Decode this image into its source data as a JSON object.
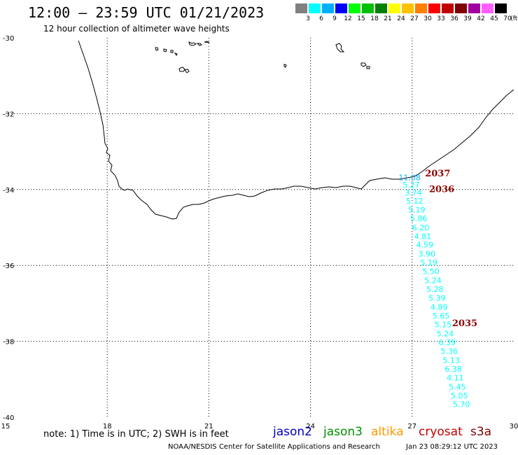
{
  "header": {
    "title": "12:00 – 23:59 UTC 01/21/2023",
    "subtitle": "12 hour collection of altimeter wave heights"
  },
  "legend": {
    "unit": "(ft)",
    "bins": [
      {
        "label": "3",
        "color": "#808080"
      },
      {
        "label": "6",
        "color": "#00ffff"
      },
      {
        "label": "9",
        "color": "#00b0ff"
      },
      {
        "label": "12",
        "color": "#0000ff"
      },
      {
        "label": "15",
        "color": "#00ff00"
      },
      {
        "label": "18",
        "color": "#00c000"
      },
      {
        "label": "21",
        "color": "#008000"
      },
      {
        "label": "24",
        "color": "#ffff00"
      },
      {
        "label": "27",
        "color": "#ffc000"
      },
      {
        "label": "30",
        "color": "#ff8000"
      },
      {
        "label": "33",
        "color": "#ff0000"
      },
      {
        "label": "36",
        "color": "#c00000"
      },
      {
        "label": "39",
        "color": "#800000"
      },
      {
        "label": "42",
        "color": "#a000a0"
      },
      {
        "label": "45",
        "color": "#ff60ff"
      },
      {
        "label": "70",
        "color": "#000000"
      }
    ]
  },
  "axes": {
    "lon_ticks": [
      "15",
      "18",
      "21",
      "24",
      "27",
      "30"
    ],
    "lat_ticks": [
      "-30",
      "-32",
      "-34",
      "-36",
      "-38",
      "-40"
    ]
  },
  "chart_data": {
    "type": "scatter",
    "x_range": [
      15,
      30
    ],
    "y_range": [
      -40,
      -30
    ],
    "grid": true,
    "units": "ft",
    "points": [
      {
        "lon": 26.6,
        "lat": -33.75,
        "value": "11.08",
        "color": "#00b0ff"
      },
      {
        "lon": 26.72,
        "lat": -33.95,
        "value": "5.27",
        "color": "#00ffff"
      },
      {
        "lon": 26.78,
        "lat": -34.15,
        "value": "3.74",
        "color": "#00ffff"
      },
      {
        "lon": 26.82,
        "lat": -34.37,
        "value": "5.12",
        "color": "#00ffff"
      },
      {
        "lon": 26.88,
        "lat": -34.6,
        "value": "5.19",
        "color": "#00ffff"
      },
      {
        "lon": 26.94,
        "lat": -34.83,
        "value": "5.86",
        "color": "#00ffff"
      },
      {
        "lon": 27.0,
        "lat": -35.07,
        "value": "6.20",
        "color": "#00ffff"
      },
      {
        "lon": 27.06,
        "lat": -35.3,
        "value": "4.81",
        "color": "#00ffff"
      },
      {
        "lon": 27.12,
        "lat": -35.53,
        "value": "4.59",
        "color": "#00ffff"
      },
      {
        "lon": 27.18,
        "lat": -35.77,
        "value": "3.90",
        "color": "#00ffff"
      },
      {
        "lon": 27.24,
        "lat": -36.0,
        "value": "5.19",
        "color": "#00ffff"
      },
      {
        "lon": 27.3,
        "lat": -36.23,
        "value": "5.50",
        "color": "#00ffff"
      },
      {
        "lon": 27.36,
        "lat": -36.47,
        "value": "5.24",
        "color": "#00ffff"
      },
      {
        "lon": 27.42,
        "lat": -36.7,
        "value": "5.28",
        "color": "#00ffff"
      },
      {
        "lon": 27.48,
        "lat": -36.93,
        "value": "5.39",
        "color": "#00ffff"
      },
      {
        "lon": 27.54,
        "lat": -37.17,
        "value": "4.89",
        "color": "#00ffff"
      },
      {
        "lon": 27.6,
        "lat": -37.4,
        "value": "5.65",
        "color": "#00ffff"
      },
      {
        "lon": 27.66,
        "lat": -37.63,
        "value": "5.15",
        "color": "#00ffff"
      },
      {
        "lon": 27.72,
        "lat": -37.87,
        "value": "5.24",
        "color": "#00ffff"
      },
      {
        "lon": 27.78,
        "lat": -38.1,
        "value": "6.39",
        "color": "#00ffff"
      },
      {
        "lon": 27.84,
        "lat": -38.33,
        "value": "5.36",
        "color": "#00ffff"
      },
      {
        "lon": 27.9,
        "lat": -38.57,
        "value": "5.13",
        "color": "#00ffff"
      },
      {
        "lon": 27.96,
        "lat": -38.8,
        "value": "6.38",
        "color": "#00ffff"
      },
      {
        "lon": 28.02,
        "lat": -39.03,
        "value": "4.11",
        "color": "#00ffff"
      },
      {
        "lon": 28.08,
        "lat": -39.27,
        "value": "5.45",
        "color": "#00ffff"
      },
      {
        "lon": 28.14,
        "lat": -39.5,
        "value": "5.05",
        "color": "#00ffff"
      },
      {
        "lon": 28.2,
        "lat": -39.73,
        "value": "5.70",
        "color": "#00ffff"
      }
    ],
    "time_labels": [
      {
        "text": "2037",
        "lon": 27.38,
        "lat": -33.65
      },
      {
        "text": "2036",
        "lon": 27.5,
        "lat": -34.07
      },
      {
        "text": "2035",
        "lon": 28.18,
        "lat": -37.6
      }
    ]
  },
  "footer": {
    "note": "note: 1) Time is in UTC; 2) SWH is in feet",
    "satellites": [
      {
        "name": "jason2",
        "color": "#0000c8"
      },
      {
        "name": "jason3",
        "color": "#009000"
      },
      {
        "name": "altika",
        "color": "#ff9900"
      },
      {
        "name": "cryosat",
        "color": "#c00000"
      },
      {
        "name": "s3a",
        "color": "#800000"
      }
    ],
    "credit": "NOAA/NESDIS Center for Satellite Applications and Research",
    "timestamp": "Jan 23 08:29:12 UTC 2023"
  }
}
